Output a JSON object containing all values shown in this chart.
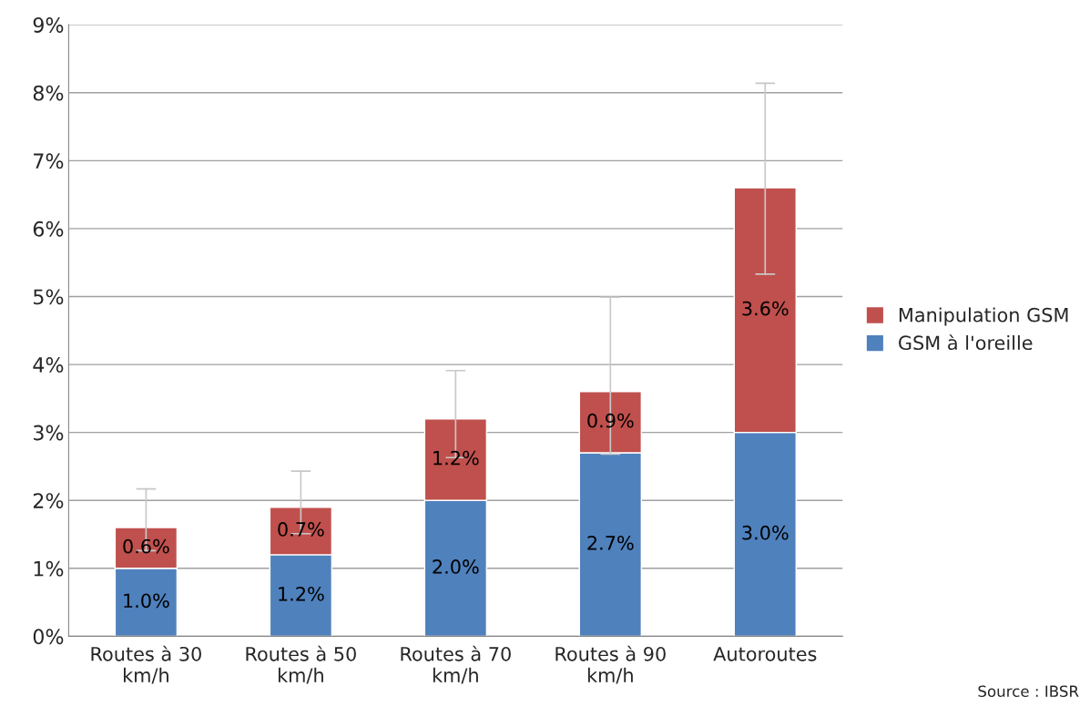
{
  "chart_data": {
    "type": "bar",
    "stacked": true,
    "categories": [
      "Routes à 30\nkm/h",
      "Routes à 50\nkm/h",
      "Routes à 70\nkm/h",
      "Routes à 90\nkm/h",
      "Autoroutes"
    ],
    "series": [
      {
        "name": "GSM à l'oreille",
        "color": "#4f81bd",
        "values": [
          1.0,
          1.2,
          2.0,
          2.7,
          3.0
        ],
        "value_labels": [
          "1.0%",
          "1.2%",
          "2.0%",
          "2.7%",
          "3.0%"
        ]
      },
      {
        "name": "Manipulation GSM",
        "color": "#c0504d",
        "values": [
          0.6,
          0.7,
          1.2,
          0.9,
          3.6
        ],
        "value_labels": [
          "0.6%",
          "0.7%",
          "1.2%",
          "0.9%",
          "3.6%"
        ],
        "errors": [
          [
            1.26,
            2.17
          ],
          [
            1.51,
            2.43
          ],
          [
            2.63,
            3.91
          ],
          [
            2.68,
            4.99
          ],
          [
            5.33,
            8.14
          ]
        ]
      }
    ],
    "ylim": [
      0,
      9
    ],
    "yticks": [
      {
        "value": 0,
        "label": "0%"
      },
      {
        "value": 1,
        "label": "1%"
      },
      {
        "value": 2,
        "label": "2%"
      },
      {
        "value": 3,
        "label": "3%"
      },
      {
        "value": 4,
        "label": "4%"
      },
      {
        "value": 5,
        "label": "5%"
      },
      {
        "value": 6,
        "label": "6%"
      },
      {
        "value": 7,
        "label": "7%"
      },
      {
        "value": 8,
        "label": "8%"
      },
      {
        "value": 9,
        "label": "9%"
      }
    ],
    "grid": "y",
    "legend": "right",
    "annotations": [
      "Source : IBSR"
    ]
  }
}
